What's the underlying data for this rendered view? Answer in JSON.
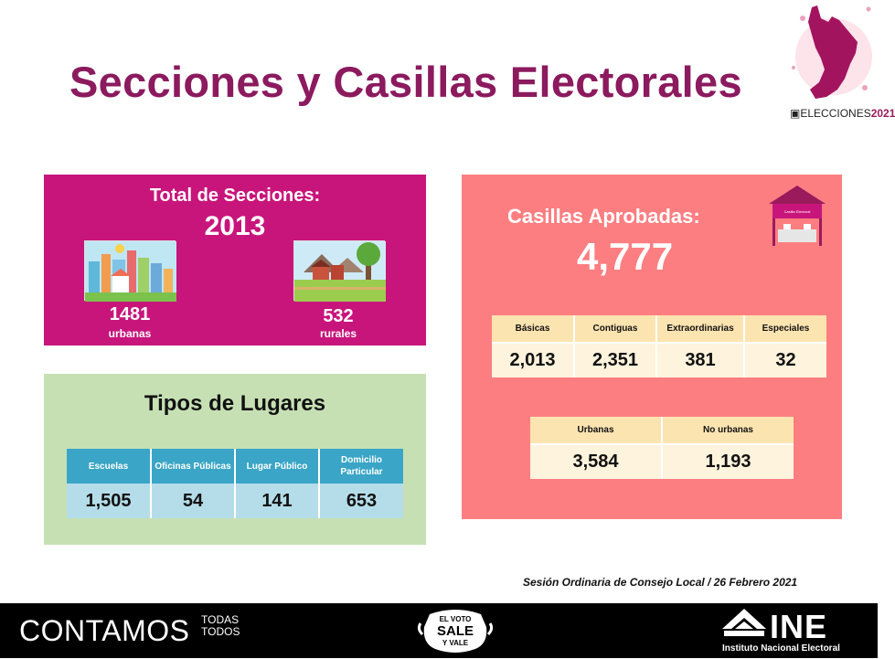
{
  "header": {
    "title": "Secciones y Casillas Electorales",
    "logo_prefix": "ELECCIONES",
    "logo_year": "2021"
  },
  "secciones": {
    "title": "Total de Secciones:",
    "total": "2013",
    "urbanas_num": "1481",
    "urbanas_label": "urbanas",
    "rurales_num": "532",
    "rurales_label": "rurales"
  },
  "tipos": {
    "title": "Tipos de Lugares",
    "headers": [
      "Escuelas",
      "Oficinas Públicas",
      "Lugar Público",
      "Domicilio Particular"
    ],
    "values": [
      "1,505",
      "54",
      "141",
      "653"
    ]
  },
  "casillas": {
    "title": "Casillas Aprobadas:",
    "total": "4,777",
    "kiosk_label": "Casilla Electoral",
    "headers": [
      "Básicas",
      "Contiguas",
      "Extraordinarias",
      "Especiales"
    ],
    "values": [
      "2,013",
      "2,351",
      "381",
      "32"
    ],
    "area_headers": [
      "Urbanas",
      "No urbanas"
    ],
    "area_values": [
      "3,584",
      "1,193"
    ]
  },
  "session": "Sesión Ordinaria de Consejo Local / 26 Febrero 2021",
  "footer": {
    "contamos": "CONTAMOS",
    "todas": "TODAS",
    "todos": "TODOS",
    "voto_line1": "EL VOTO",
    "voto_line2": "SALE",
    "voto_line3": "Y VALE",
    "ine": "INE",
    "ine_full": "Instituto Nacional Electoral"
  },
  "colors": {
    "title": "#8b1a5e",
    "secciones_bg": "#c8157b",
    "tipos_bg": "#c6e0b4",
    "casillas_bg": "#fd7e81",
    "table_blue": "#3aa5c6",
    "table_light_blue": "#b4dde9",
    "table_header_peach": "#fce4b1",
    "table_cell_cream": "#fef3dc"
  }
}
